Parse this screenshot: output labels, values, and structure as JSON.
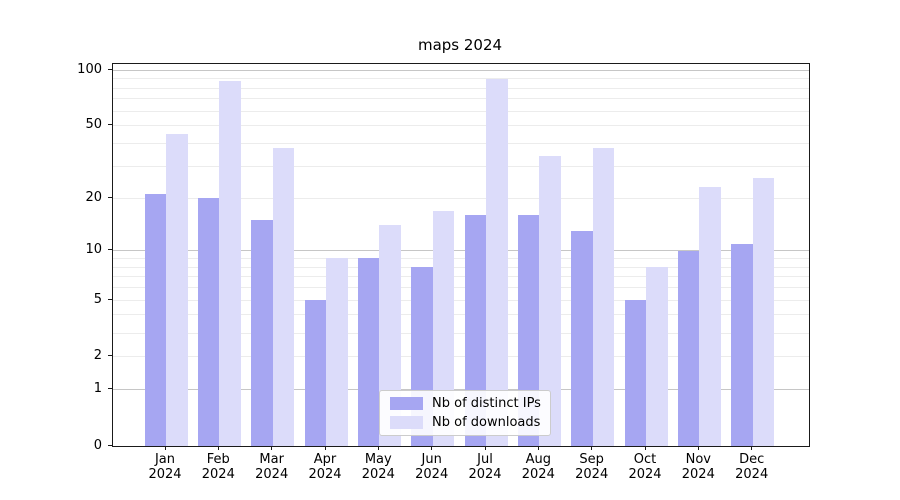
{
  "chart_data": {
    "type": "bar",
    "title": "maps 2024",
    "xlabel": "",
    "ylabel": "",
    "x_tick_line1": [
      "Jan",
      "Feb",
      "Mar",
      "Apr",
      "May",
      "Jun",
      "Jul",
      "Aug",
      "Sep",
      "Oct",
      "Nov",
      "Dec"
    ],
    "x_tick_line2": "2024",
    "series": [
      {
        "name": "Nb of distinct IPs",
        "color": "#a6a6f2",
        "values": [
          21,
          20,
          15,
          5,
          9,
          8,
          16,
          16,
          13,
          5,
          10,
          11
        ]
      },
      {
        "name": "Nb of downloads",
        "color": "#dcdcfa",
        "values": [
          45,
          87,
          38,
          9,
          14,
          17,
          89,
          34,
          38,
          8,
          23,
          26
        ]
      }
    ],
    "yscale": "log1p",
    "ylim": [
      0,
      100
    ],
    "yticks": [
      0,
      1,
      2,
      5,
      10,
      20,
      50,
      100
    ],
    "minor_gridlines": [
      2,
      3,
      4,
      5,
      6,
      7,
      8,
      9,
      20,
      30,
      40,
      50,
      60,
      70,
      80,
      90
    ],
    "major_gridlines": [
      1,
      10,
      100
    ],
    "grid": "on",
    "legend_position": "lower center"
  }
}
